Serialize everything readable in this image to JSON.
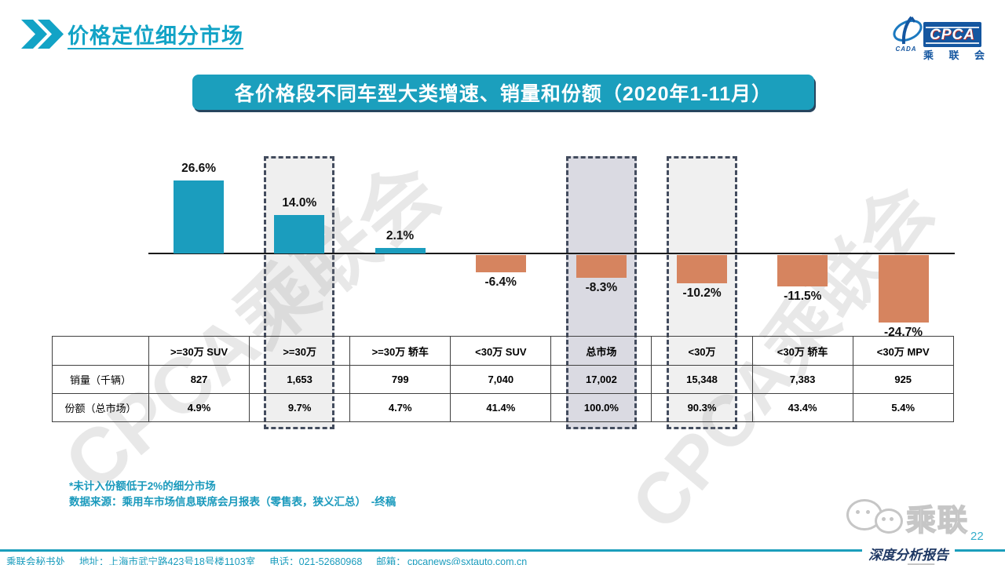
{
  "slide": {
    "title": "价格定位细分市场",
    "page_number": "22"
  },
  "logo": {
    "cpca": "CPCA",
    "cada": "CADA",
    "name_cn": [
      "乘",
      "联",
      "会"
    ]
  },
  "banner": {
    "text": "各价格段不同车型大类增速、销量和份额（2020年1-11月）"
  },
  "watermark": {
    "text": "CPCA乘联会"
  },
  "chart_data": {
    "type": "bar",
    "title": "各价格段不同车型大类增速、销量和份额（2020年1-11月）",
    "unit": "%",
    "categories": [
      ">=30万 SUV",
      ">=30万",
      ">=30万 轿车",
      "<30万 SUV",
      "总市场",
      "<30万",
      "<30万 轿车",
      "<30万 MPV"
    ],
    "values": [
      26.6,
      14.0,
      2.1,
      -6.4,
      -8.3,
      -10.2,
      -11.5,
      -24.7
    ],
    "labels": [
      "26.6%",
      "14.0%",
      "2.1%",
      "-6.4%",
      "-8.3%",
      "-10.2%",
      "-11.5%",
      "-24.7%"
    ],
    "positive_color": "#1B9DBE",
    "negative_color": "#D6845F",
    "grid": false,
    "zero_baseline": true,
    "highlights": [
      {
        "category": ">=30万",
        "index": 1,
        "fill": "#EFEFEF"
      },
      {
        "category": "总市场",
        "index": 4,
        "fill": "#DADAE2"
      },
      {
        "category": "<30万",
        "index": 5,
        "fill": "#F0F0F0"
      }
    ],
    "table": {
      "corner": "",
      "row_headers": [
        "销量（千辆）",
        "份额（总市场）"
      ],
      "rows": [
        [
          "827",
          "1,653",
          "799",
          "7,040",
          "17,002",
          "15,348",
          "7,383",
          "925"
        ],
        [
          "4.9%",
          "9.7%",
          "4.7%",
          "41.4%",
          "100.0%",
          "90.3%",
          "43.4%",
          "5.4%"
        ]
      ]
    }
  },
  "notes": {
    "line1": "*未计入份额低于2%的细分市场",
    "line2": "数据来源：乘用车市场信息联席会月报表（零售表，狭义汇总）　-终稿"
  },
  "wechat": {
    "name": "乘联会"
  },
  "report_badge": {
    "text": "深度分析报告"
  },
  "footer": {
    "org": "乘联会秘书处",
    "address": "地址：上海市武宁路423号18号楼1103室",
    "phone": "电话：021-52680968",
    "email_label": "邮箱：",
    "email": "cpcanews@sxtauto.com.cn"
  }
}
